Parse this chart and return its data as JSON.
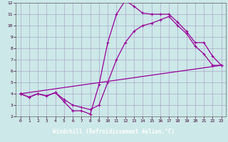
{
  "xlabel": "Windchill (Refroidissement éolien,°C)",
  "bg_color": "#cce8e8",
  "grid_color": "#aaaacc",
  "line_color": "#990099",
  "xlabel_bg": "#660066",
  "xlabel_fg": "#ffffff",
  "xlim": [
    -0.5,
    23.5
  ],
  "ylim": [
    2,
    12
  ],
  "xticks": [
    0,
    1,
    2,
    3,
    4,
    5,
    6,
    7,
    8,
    9,
    10,
    11,
    12,
    13,
    14,
    15,
    16,
    17,
    18,
    19,
    20,
    21,
    22,
    23
  ],
  "yticks": [
    2,
    3,
    4,
    5,
    6,
    7,
    8,
    9,
    10,
    11,
    12
  ],
  "line1_x": [
    0,
    1,
    2,
    3,
    4,
    5,
    6,
    7,
    8,
    9,
    10,
    11,
    12,
    13,
    14,
    15,
    16,
    17,
    18,
    19,
    20,
    21,
    22,
    23
  ],
  "line1_y": [
    4.0,
    3.7,
    4.0,
    3.8,
    4.1,
    3.3,
    2.5,
    2.5,
    2.2,
    4.8,
    8.5,
    11.0,
    12.2,
    11.7,
    11.1,
    11.0,
    11.0,
    11.0,
    10.3,
    9.5,
    8.5,
    8.5,
    7.3,
    6.5
  ],
  "line2_x": [
    0,
    1,
    2,
    3,
    4,
    5,
    6,
    7,
    8,
    9,
    10,
    11,
    12,
    13,
    14,
    15,
    16,
    17,
    18,
    19,
    20,
    21,
    22,
    23
  ],
  "line2_y": [
    4.0,
    3.7,
    4.0,
    3.8,
    4.1,
    3.5,
    3.0,
    2.8,
    2.6,
    3.0,
    5.0,
    7.0,
    8.5,
    9.5,
    10.0,
    10.2,
    10.5,
    10.8,
    10.0,
    9.3,
    8.2,
    7.5,
    6.5,
    6.5
  ],
  "line3_x": [
    0,
    23
  ],
  "line3_y": [
    4.0,
    6.5
  ]
}
